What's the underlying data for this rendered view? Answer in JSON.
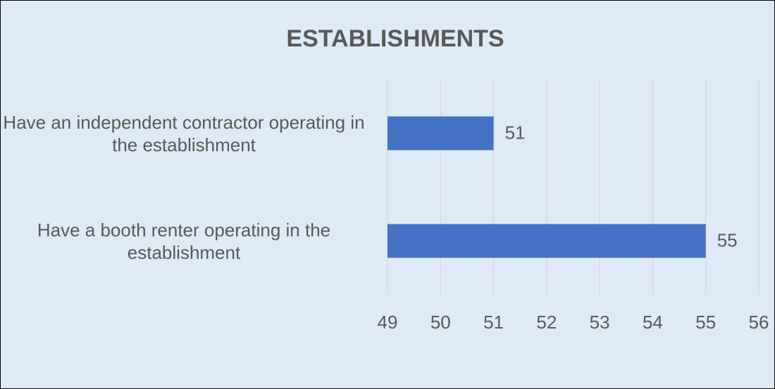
{
  "chart_data": {
    "type": "bar",
    "orientation": "horizontal",
    "title": "ESTABLISHMENTS",
    "categories": [
      "Have an independent contractor operating in the establishment",
      "Have a booth renter operating in the establishment"
    ],
    "values": [
      51,
      55
    ],
    "color": "#4472c4",
    "xlim": [
      49,
      56
    ],
    "xticks": [
      49,
      50,
      51,
      52,
      53,
      54,
      55,
      56
    ],
    "grid": true
  }
}
